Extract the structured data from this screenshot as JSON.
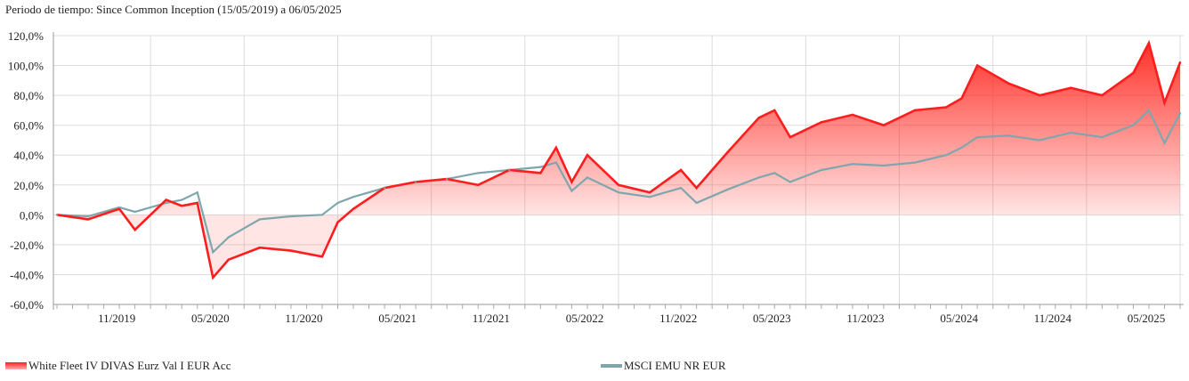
{
  "period_label": "Periodo de tiempo: Since Common Inception (15/05/2019) a 06/05/2025",
  "chart_data": {
    "type": "line",
    "ylim": [
      -60,
      120
    ],
    "yticks": [
      -60,
      -40,
      -20,
      0,
      20,
      40,
      60,
      80,
      100,
      120
    ],
    "ytick_labels": [
      "-60,0%",
      "-40,0%",
      "-20,0%",
      "0,0%",
      "20,0%",
      "40,0%",
      "60,0%",
      "80,0%",
      "100,0%",
      "120,0%"
    ],
    "xticks": [
      "11/2019",
      "05/2020",
      "11/2020",
      "05/2021",
      "11/2021",
      "05/2022",
      "11/2022",
      "05/2023",
      "11/2023",
      "05/2024",
      "11/2024",
      "05/2025"
    ],
    "x": [
      "05/2019",
      "07/2019",
      "09/2019",
      "10/2019",
      "12/2019",
      "01/2020",
      "02/2020",
      "03/2020",
      "04/2020",
      "06/2020",
      "08/2020",
      "10/2020",
      "11/2020",
      "12/2020",
      "02/2021",
      "04/2021",
      "06/2021",
      "08/2021",
      "10/2021",
      "12/2021",
      "01/2022",
      "02/2022",
      "03/2022",
      "05/2022",
      "07/2022",
      "09/2022",
      "10/2022",
      "12/2022",
      "02/2023",
      "03/2023",
      "04/2023",
      "06/2023",
      "08/2023",
      "10/2023",
      "12/2023",
      "02/2024",
      "03/2024",
      "04/2024",
      "06/2024",
      "08/2024",
      "10/2024",
      "12/2024",
      "02/2025",
      "03/2025",
      "04/2025",
      "05/2025"
    ],
    "series": [
      {
        "name": "White Fleet IV DIVAS Eurz Val I EUR Acc",
        "color": "#ff1d1d",
        "values": [
          0,
          -3,
          4,
          -10,
          10,
          6,
          8,
          -42,
          -30,
          -22,
          -24,
          -28,
          -5,
          4,
          18,
          22,
          24,
          20,
          30,
          28,
          45,
          22,
          40,
          20,
          15,
          30,
          18,
          42,
          65,
          70,
          52,
          62,
          67,
          60,
          70,
          72,
          78,
          100,
          88,
          80,
          85,
          80,
          95,
          115,
          75,
          102
        ]
      },
      {
        "name": "MSCI EMU NR EUR",
        "color": "#7fa6ad",
        "values": [
          0,
          -1,
          5,
          2,
          8,
          10,
          15,
          -25,
          -15,
          -3,
          -1,
          0,
          8,
          12,
          18,
          22,
          24,
          28,
          30,
          32,
          35,
          16,
          25,
          15,
          12,
          18,
          8,
          17,
          25,
          28,
          22,
          30,
          34,
          33,
          35,
          40,
          45,
          52,
          53,
          50,
          55,
          52,
          60,
          70,
          48,
          68
        ]
      }
    ]
  },
  "legend": {
    "fund_label": "White Fleet IV DIVAS Eurz Val I EUR Acc",
    "index_label": "MSCI EMU NR EUR"
  }
}
